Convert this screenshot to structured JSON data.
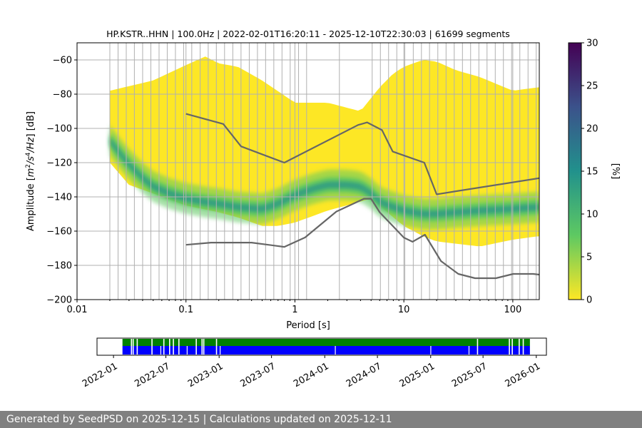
{
  "footer_text": "Generated by SeedPSD on 2025-12-15 | Calculations updated on 2025-12-11",
  "chart_data": [
    {
      "type": "heatmap",
      "title": "HP.KSTR..HHN | 100.0Hz | 2022-02-01T16:20:11 - 2025-12-10T22:30:03 | 61699 segments",
      "xlabel": "Period [s]",
      "ylabel_parts": [
        "Amplitude [",
        "m",
        "2",
        "/",
        "s",
        "4",
        "/",
        "Hz",
        "] [dB]"
      ],
      "x_scale": "log",
      "xlim": [
        0.01,
        175
      ],
      "ylim": [
        -200,
        -50
      ],
      "x_ticks": [
        {
          "value": 0.01,
          "label": "0.01"
        },
        {
          "value": 0.1,
          "label": "0.1"
        },
        {
          "value": 1,
          "label": "1"
        },
        {
          "value": 10,
          "label": "10"
        },
        {
          "value": 100,
          "label": "100"
        }
      ],
      "y_ticks": [
        {
          "value": -60,
          "label": "−60"
        },
        {
          "value": -80,
          "label": "−80"
        },
        {
          "value": -100,
          "label": "−100"
        },
        {
          "value": -120,
          "label": "−120"
        },
        {
          "value": -140,
          "label": "−140"
        },
        {
          "value": -160,
          "label": "−160"
        },
        {
          "value": -180,
          "label": "−180"
        },
        {
          "value": -200,
          "label": "−200"
        }
      ],
      "grid": true,
      "grid_periods": [
        0.02,
        0.0238,
        0.0283,
        0.0336,
        0.04,
        0.0476,
        0.0566,
        0.0673,
        0.08,
        0.0952,
        0.113,
        0.135,
        0.16,
        0.19,
        0.226,
        0.269,
        0.32,
        0.381,
        0.453,
        0.538,
        0.64,
        0.761,
        0.905,
        1.08,
        1.28,
        2.56,
        5.12,
        6.09,
        7.24,
        8.61,
        10.2,
        12.2,
        14.5,
        17.2,
        20.5,
        24.4,
        29.0,
        34.5,
        41.0,
        48.8,
        58.0,
        69.0,
        82.0,
        97.5,
        116,
        138,
        164
      ],
      "heatmap_summary": {
        "mode_curve": {
          "period": [
            0.02,
            0.025,
            0.03,
            0.04,
            0.05,
            0.07,
            0.1,
            0.15,
            0.2,
            0.3,
            0.5,
            0.7,
            1,
            1.5,
            2,
            3,
            4,
            5,
            6,
            8,
            10,
            15,
            20,
            30,
            50,
            100,
            170
          ],
          "db": [
            -107,
            -115,
            -121,
            -129,
            -134,
            -138,
            -141,
            -143,
            -144,
            -146,
            -147,
            -144,
            -139,
            -135,
            -133,
            -133,
            -134,
            -138,
            -143,
            -146,
            -148,
            -150,
            -150,
            -149,
            -148,
            -147,
            -146
          ]
        },
        "upper_bound": {
          "period": [
            0.02,
            0.05,
            0.1,
            0.15,
            0.2,
            0.3,
            0.5,
            1,
            2,
            4,
            6,
            8,
            10,
            15,
            20,
            30,
            50,
            100,
            170
          ],
          "db": [
            -78,
            -72,
            -63,
            -58,
            -62,
            -64,
            -72,
            -85,
            -85,
            -90,
            -76,
            -68,
            -64,
            -60,
            -61,
            -66,
            -70,
            -78,
            -76
          ]
        },
        "lower_bound": {
          "period": [
            0.02,
            0.03,
            0.05,
            0.1,
            0.2,
            0.3,
            0.5,
            0.7,
            1,
            2,
            3,
            5,
            6,
            8,
            10,
            15,
            20,
            50,
            100,
            170
          ],
          "db": [
            -120,
            -133,
            -138,
            -145,
            -149,
            -152,
            -157,
            -157,
            -155,
            -148,
            -145,
            -141,
            -145,
            -152,
            -157,
            -163,
            -166,
            -169,
            -165,
            -163
          ]
        }
      },
      "noise_models": {
        "high": {
          "period": [
            0.1,
            0.22,
            0.32,
            0.8,
            3.8,
            4.6,
            6.3,
            7.9,
            15.4,
            20.0,
            354.8
          ],
          "db": [
            -91.5,
            -97.4,
            -110.5,
            -120.0,
            -98.0,
            -96.5,
            -101.0,
            -113.5,
            -120.0,
            -138.5,
            -126.0
          ]
        },
        "low": {
          "period": [
            0.1,
            0.17,
            0.4,
            0.8,
            1.24,
            2.4,
            4.3,
            5.0,
            6.0,
            10.0,
            12.0,
            15.6,
            21.9,
            31.6,
            45.0,
            70.0,
            101.0,
            154.0,
            328.0
          ],
          "db": [
            -168.0,
            -166.7,
            -166.7,
            -169.2,
            -163.7,
            -148.6,
            -141.1,
            -141.1,
            -149.0,
            -163.8,
            -166.2,
            -162.1,
            -177.5,
            -185.0,
            -187.5,
            -187.5,
            -185.0,
            -185.0,
            -187.5
          ]
        },
        "color": "#666666"
      },
      "colorbar": {
        "label": "[%]",
        "range": [
          0,
          30
        ],
        "ticks": [
          {
            "value": 0,
            "label": "0"
          },
          {
            "value": 5,
            "label": "5"
          },
          {
            "value": 10,
            "label": "10"
          },
          {
            "value": 15,
            "label": "15"
          },
          {
            "value": 20,
            "label": "20"
          },
          {
            "value": 25,
            "label": "25"
          },
          {
            "value": 30,
            "label": "30"
          }
        ],
        "colormap": "viridis_r",
        "colors": [
          "#fde725",
          "#5ec962",
          "#21918c",
          "#3b528b",
          "#440154"
        ]
      }
    },
    {
      "type": "timeline",
      "x_ticks": [
        {
          "date": "2022-01-01",
          "label": "2022-01"
        },
        {
          "date": "2022-07-01",
          "label": "2022-07"
        },
        {
          "date": "2023-01-01",
          "label": "2023-01"
        },
        {
          "date": "2023-07-01",
          "label": "2023-07"
        },
        {
          "date": "2024-01-01",
          "label": "2024-01"
        },
        {
          "date": "2024-07-01",
          "label": "2024-07"
        },
        {
          "date": "2025-01-01",
          "label": "2025-01"
        },
        {
          "date": "2025-07-01",
          "label": "2025-07"
        },
        {
          "date": "2026-01-01",
          "label": "2026-01"
        }
      ],
      "xlim": [
        "2021-11-05",
        "2026-02-05"
      ],
      "coverage_start": "2022-02-01",
      "coverage_end": "2025-12-10",
      "gaps_used": [
        "2022-03-02",
        "2022-03-08",
        "2022-03-22",
        "2022-05-12",
        "2022-06-22",
        "2022-07-12",
        "2022-07-25",
        "2022-08-13",
        "2022-10-12",
        "2022-11-01",
        "2022-11-07",
        "2022-12-21",
        "2025-06-10",
        "2025-09-28",
        "2025-10-08",
        "2025-11-01",
        "2025-11-15"
      ],
      "gaps_full": [
        "2022-06-12",
        "2022-09-11",
        "2023-01-03",
        "2024-02-05",
        "2024-12-31",
        "2025-05-12"
      ],
      "colors": {
        "used": "#0000ff",
        "full": "#008000"
      }
    }
  ]
}
